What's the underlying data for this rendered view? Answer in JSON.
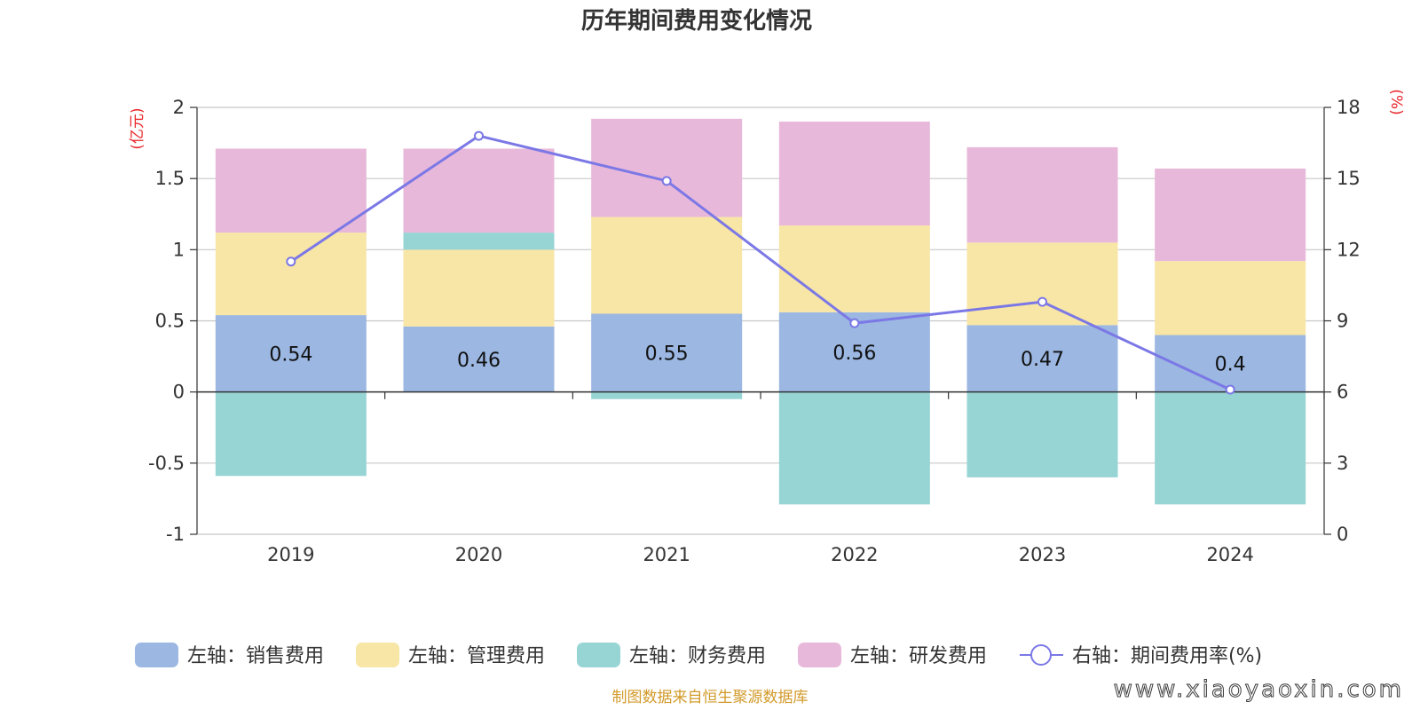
{
  "chart_data": {
    "type": "bar",
    "title": "历年期间费用变化情况",
    "categories": [
      "2019",
      "2020",
      "2021",
      "2022",
      "2023",
      "2024"
    ],
    "left_axis": {
      "unit": "(亿元)",
      "ticks": [
        "2",
        "1.5",
        "1",
        "0.5",
        "0",
        "-0.5",
        "-1"
      ],
      "range": [
        -1,
        2
      ]
    },
    "right_axis": {
      "unit": "(%)",
      "ticks": [
        "18",
        "15",
        "12",
        "9",
        "6",
        "3",
        "0"
      ],
      "range": [
        0,
        18
      ]
    },
    "series": [
      {
        "name": "左轴：销售费用",
        "color": "#9bb7e2",
        "values": [
          0.54,
          0.46,
          0.55,
          0.56,
          0.47,
          0.4
        ]
      },
      {
        "name": "左轴：管理费用",
        "color": "#f8e6a6",
        "values": [
          0.58,
          0.54,
          0.68,
          0.61,
          0.58,
          0.52
        ]
      },
      {
        "name": "左轴：财务费用",
        "color": "#97d4d4",
        "values": [
          -0.59,
          0.12,
          -0.05,
          -0.79,
          -0.6,
          -0.79
        ]
      },
      {
        "name": "左轴：研发费用",
        "color": "#e8b8da",
        "values": [
          0.59,
          0.59,
          0.69,
          0.73,
          0.67,
          0.65
        ]
      }
    ],
    "line": {
      "name": "右轴：期间费用率(%)",
      "color": "#7b78e6",
      "values": [
        11.5,
        16.8,
        14.9,
        8.9,
        9.8,
        6.1
      ]
    },
    "bar_labels": [
      "0.54",
      "0.46",
      "0.55",
      "0.56",
      "0.47",
      "0.4"
    ],
    "grid": true,
    "legend": "bottom"
  },
  "source_note": "制图数据来自恒生聚源数据库",
  "watermark": "www.xiaoyaoxin.com"
}
